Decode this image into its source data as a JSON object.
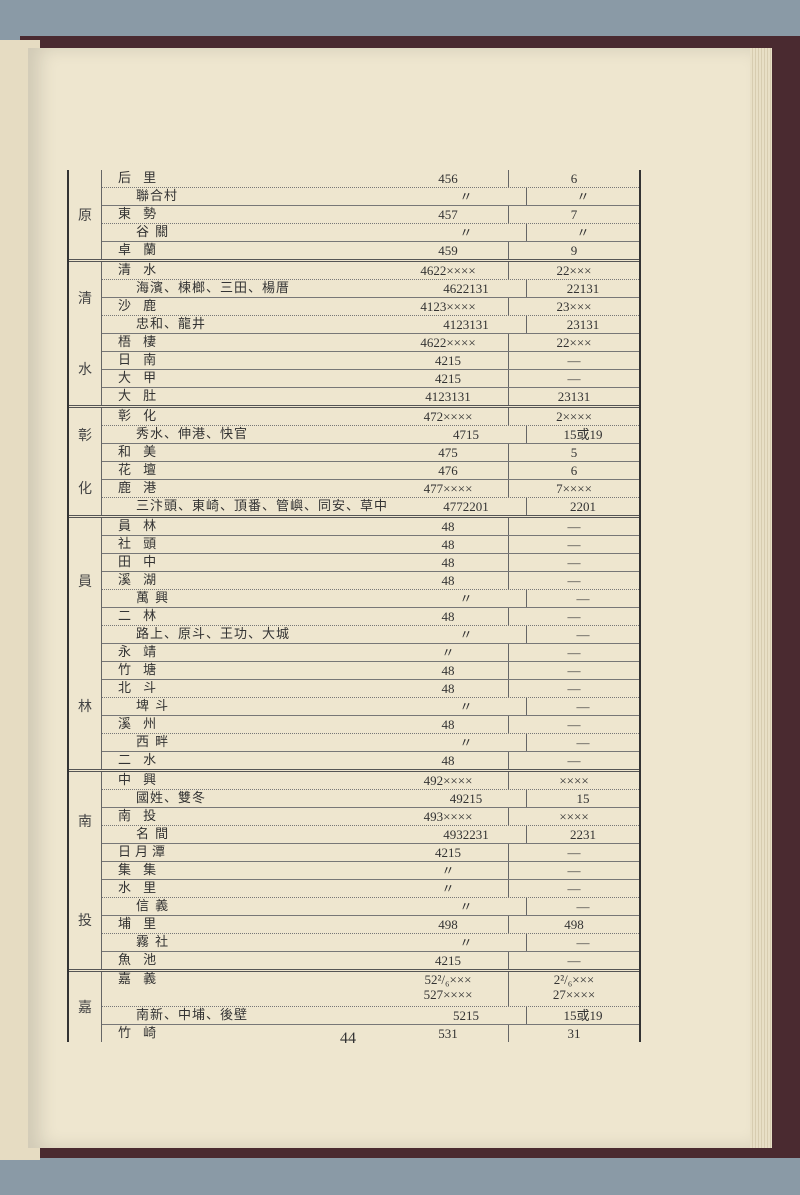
{
  "page_number": "44",
  "groups": [
    {
      "label": [
        "原"
      ],
      "rows": [
        {
          "name": "后 里",
          "indent": false,
          "v1": "456",
          "v2": "6",
          "sep": "dot"
        },
        {
          "name": "聯合村",
          "indent": true,
          "v1": "〃",
          "v2": "〃",
          "sep": "solid"
        },
        {
          "name": "東 勢",
          "indent": false,
          "v1": "457",
          "v2": "7",
          "sep": "dot"
        },
        {
          "name": "谷 關",
          "indent": true,
          "v1": "〃",
          "v2": "〃",
          "sep": "solid"
        },
        {
          "name": "卓 蘭",
          "indent": false,
          "v1": "459",
          "v2": "9",
          "sep": "solid"
        }
      ]
    },
    {
      "label": [
        "清",
        "水"
      ],
      "rows": [
        {
          "name": "清 水",
          "indent": false,
          "v1": "4622××××",
          "v2": "22×××",
          "sep": "dot"
        },
        {
          "name": "海濱、楝榔、三田、楊厝",
          "indent": true,
          "v1": "4622131",
          "v2": "22131",
          "sep": "solid"
        },
        {
          "name": "沙 鹿",
          "indent": false,
          "v1": "4123××××",
          "v2": "23×××",
          "sep": "dot"
        },
        {
          "name": "忠和、龍井",
          "indent": true,
          "v1": "4123131",
          "v2": "23131",
          "sep": "solid"
        },
        {
          "name": "梧 棲",
          "indent": false,
          "v1": "4622××××",
          "v2": "22×××",
          "sep": "solid"
        },
        {
          "name": "日 南",
          "indent": false,
          "v1": "4215",
          "v2": "—",
          "sep": "solid"
        },
        {
          "name": "大 甲",
          "indent": false,
          "v1": "4215",
          "v2": "—",
          "sep": "solid"
        },
        {
          "name": "大 肚",
          "indent": false,
          "v1": "4123131",
          "v2": "23131",
          "sep": "solid"
        }
      ]
    },
    {
      "label": [
        "彰",
        "化"
      ],
      "rows": [
        {
          "name": "彰 化",
          "indent": false,
          "v1": "472××××",
          "v2": "2××××",
          "sep": "dot"
        },
        {
          "name": "秀水、伸港、快官",
          "indent": true,
          "v1": "4715",
          "v2": "15或19",
          "sep": "solid"
        },
        {
          "name": "和 美",
          "indent": false,
          "v1": "475",
          "v2": "5",
          "sep": "solid"
        },
        {
          "name": "花 壇",
          "indent": false,
          "v1": "476",
          "v2": "6",
          "sep": "solid"
        },
        {
          "name": "鹿 港",
          "indent": false,
          "v1": "477××××",
          "v2": "7××××",
          "sep": "dot"
        },
        {
          "name": "三汴頭、東崎、頂番、管嶼、同安、草中",
          "indent": true,
          "v1": "4772201",
          "v2": "2201",
          "sep": "solid"
        }
      ]
    },
    {
      "label": [
        "員",
        "林"
      ],
      "rows": [
        {
          "name": "員 林",
          "indent": false,
          "v1": "48",
          "v2": "—",
          "sep": "solid"
        },
        {
          "name": "社 頭",
          "indent": false,
          "v1": "48",
          "v2": "—",
          "sep": "solid"
        },
        {
          "name": "田 中",
          "indent": false,
          "v1": "48",
          "v2": "—",
          "sep": "solid"
        },
        {
          "name": "溪 湖",
          "indent": false,
          "v1": "48",
          "v2": "—",
          "sep": "dot"
        },
        {
          "name": "萬 興",
          "indent": true,
          "v1": "〃",
          "v2": "—",
          "sep": "solid"
        },
        {
          "name": "二 林",
          "indent": false,
          "v1": "48",
          "v2": "—",
          "sep": "dot"
        },
        {
          "name": "路上、原斗、王功、大城",
          "indent": true,
          "v1": "〃",
          "v2": "—",
          "sep": "solid"
        },
        {
          "name": "永 靖",
          "indent": false,
          "v1": "〃",
          "v2": "—",
          "sep": "solid"
        },
        {
          "name": "竹 塘",
          "indent": false,
          "v1": "48",
          "v2": "—",
          "sep": "solid"
        },
        {
          "name": "北 斗",
          "indent": false,
          "v1": "48",
          "v2": "—",
          "sep": "dot"
        },
        {
          "name": "埤 斗",
          "indent": true,
          "v1": "〃",
          "v2": "—",
          "sep": "solid"
        },
        {
          "name": "溪 州",
          "indent": false,
          "v1": "48",
          "v2": "—",
          "sep": "dot"
        },
        {
          "name": "西 畔",
          "indent": true,
          "v1": "〃",
          "v2": "—",
          "sep": "solid"
        },
        {
          "name": "二 水",
          "indent": false,
          "v1": "48",
          "v2": "—",
          "sep": "solid"
        }
      ]
    },
    {
      "label": [
        "南",
        "投"
      ],
      "rows": [
        {
          "name": "中 興",
          "indent": false,
          "v1": "492××××",
          "v2": "××××",
          "sep": "dot"
        },
        {
          "name": "國姓、雙冬",
          "indent": true,
          "v1": "49215",
          "v2": "15",
          "sep": "solid"
        },
        {
          "name": "南 投",
          "indent": false,
          "v1": "493××××",
          "v2": "××××",
          "sep": "dot"
        },
        {
          "name": "名 間",
          "indent": true,
          "v1": "4932231",
          "v2": "2231",
          "sep": "solid"
        },
        {
          "name": "日月潭",
          "indent": false,
          "v1": "4215",
          "v2": "—",
          "sep": "solid"
        },
        {
          "name": "集 集",
          "indent": false,
          "v1": "〃",
          "v2": "—",
          "sep": "solid"
        },
        {
          "name": "水 里",
          "indent": false,
          "v1": "〃",
          "v2": "—",
          "sep": "dot"
        },
        {
          "name": "信 義",
          "indent": true,
          "v1": "〃",
          "v2": "—",
          "sep": "solid"
        },
        {
          "name": "埔 里",
          "indent": false,
          "v1": "498",
          "v2": "498",
          "sep": "dot"
        },
        {
          "name": "霧 社",
          "indent": true,
          "v1": "〃",
          "v2": "—",
          "sep": "solid"
        },
        {
          "name": "魚 池",
          "indent": false,
          "v1": "4215",
          "v2": "—",
          "sep": "solid"
        }
      ]
    },
    {
      "label": [
        "嘉"
      ],
      "rows": [
        {
          "name": "嘉 義",
          "indent": false,
          "v1": "52²/₆×××\n527××××",
          "v2": "2²/₆×××\n27××××",
          "sep": "dot",
          "tall": true
        },
        {
          "name": "南新、中埔、後壁",
          "indent": true,
          "v1": "5215",
          "v2": "15或19",
          "sep": "solid"
        },
        {
          "name": "竹 崎",
          "indent": false,
          "v1": "531",
          "v2": "31",
          "sep": "solid"
        }
      ]
    }
  ]
}
